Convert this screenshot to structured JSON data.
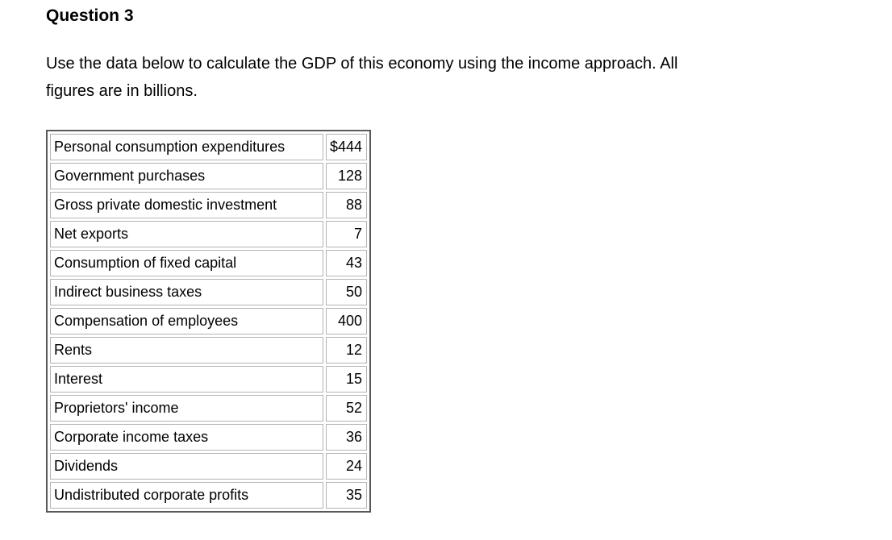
{
  "question": {
    "title": "Question 3",
    "instructions_lines": [
      "Use the data below to calculate the GDP of this economy using the income approach. All",
      "figures are in billions."
    ]
  },
  "table": {
    "rows": [
      {
        "label": "Personal consumption expenditures",
        "value": "$444"
      },
      {
        "label": "Government purchases",
        "value": "128"
      },
      {
        "label": "Gross private domestic investment",
        "value": "88"
      },
      {
        "label": "Net exports",
        "value": "7"
      },
      {
        "label": "Consumption of fixed capital",
        "value": "43"
      },
      {
        "label": "Indirect business taxes",
        "value": "50"
      },
      {
        "label": "Compensation of employees",
        "value": "400"
      },
      {
        "label": "Rents",
        "value": "12"
      },
      {
        "label": "Interest",
        "value": "15"
      },
      {
        "label": "Proprietors' income",
        "value": "52"
      },
      {
        "label": "Corporate income taxes",
        "value": "36"
      },
      {
        "label": "Dividends",
        "value": "24"
      },
      {
        "label": "Undistributed corporate profits",
        "value": "35"
      }
    ]
  },
  "colors": {
    "text": "#000000",
    "background": "#ffffff",
    "table_outer_border": "#595959",
    "cell_border": "#b3b3b3"
  }
}
